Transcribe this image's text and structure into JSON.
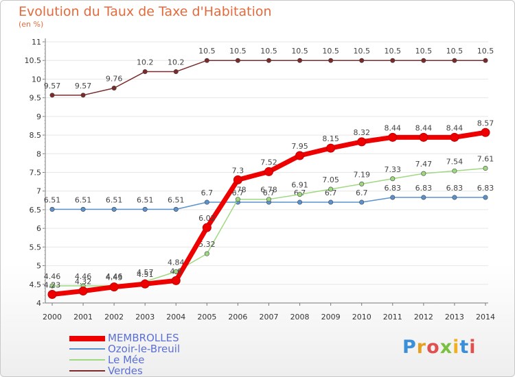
{
  "title": "Evolution du Taux de Taxe d'Habitation",
  "subtitle": "(en %)",
  "logo": "Proxiti",
  "colors": {
    "title": "#e46a3c",
    "legend_text": "#5b6fd6",
    "axis": "#777777",
    "grid": "#e6e6e6"
  },
  "chart_data": {
    "type": "line",
    "title": "Evolution du Taux de Taxe d'Habitation",
    "subtitle": "(en %)",
    "xlabel": "",
    "ylabel": "",
    "x": [
      "2000",
      "2001",
      "2002",
      "2003",
      "2004",
      "2005",
      "2006",
      "2007",
      "2008",
      "2009",
      "2010",
      "2011",
      "2012",
      "2013",
      "2014"
    ],
    "ylim": [
      4,
      11
    ],
    "yticks": [
      "4",
      "4.5",
      "5",
      "5.5",
      "6",
      "6.5",
      "7",
      "7.5",
      "8",
      "8.5",
      "9",
      "9.5",
      "10",
      "10.5",
      "11"
    ],
    "grid": "horizontal",
    "legend_placement": "bottom-left",
    "series": [
      {
        "name": "MEMBROLLES",
        "color": "#ee0000",
        "values": [
          4.23,
          4.32,
          4.43,
          4.51,
          4.6,
          6.02,
          7.3,
          7.52,
          7.95,
          8.15,
          8.32,
          8.44,
          8.44,
          8.44,
          8.57
        ],
        "labels": [
          "4.23",
          "4.32",
          "4.43",
          "4.51",
          "4.6",
          "6.02",
          "7.3",
          "7.52",
          "7.95",
          "8.15",
          "8.32",
          "8.44",
          "8.44",
          "8.44",
          "8.57"
        ]
      },
      {
        "name": "Ozoir-le-Breuil",
        "color": "#5a92cf",
        "values": [
          6.51,
          6.51,
          6.51,
          6.51,
          6.51,
          6.7,
          6.7,
          6.7,
          6.7,
          6.7,
          6.7,
          6.83,
          6.83,
          6.83,
          6.83
        ],
        "labels": [
          "6.51",
          "6.51",
          "6.51",
          "6.51",
          "6.51",
          "6.7",
          "6.7",
          "6.7",
          "6.7",
          "6.7",
          "6.7",
          "6.83",
          "6.83",
          "6.83",
          "6.83"
        ]
      },
      {
        "name": "Le Mée",
        "color": "#9ed880",
        "values": [
          4.46,
          4.46,
          4.46,
          4.57,
          4.84,
          5.32,
          6.78,
          6.78,
          6.91,
          7.05,
          7.19,
          7.33,
          7.47,
          7.54,
          7.61
        ],
        "labels": [
          "4.46",
          "4.46",
          "4.46",
          "4.57",
          "4.84",
          "5.32",
          "6.78",
          "6.78",
          "6.91",
          "7.05",
          "7.19",
          "7.33",
          "7.47",
          "7.54",
          "7.61"
        ]
      },
      {
        "name": "Verdes",
        "color": "#7a2a2a",
        "values": [
          9.57,
          9.57,
          9.76,
          10.2,
          10.2,
          10.5,
          10.5,
          10.5,
          10.5,
          10.5,
          10.5,
          10.5,
          10.5,
          10.5,
          10.5
        ],
        "labels": [
          "9.57",
          "9.57",
          "9.76",
          "10.2",
          "10.2",
          "10.5",
          "10.5",
          "10.5",
          "10.5",
          "10.5",
          "10.5",
          "10.5",
          "10.5",
          "10.5",
          "10.5"
        ]
      }
    ]
  }
}
